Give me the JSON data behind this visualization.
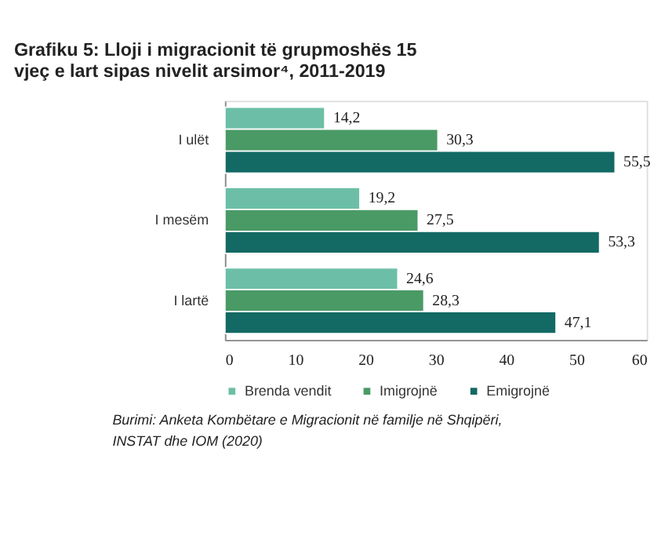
{
  "chart_data": {
    "type": "bar",
    "orientation": "horizontal",
    "title": "Grafiku 5: Lloji i migracionit të grupmoshës 15 vjeç e lart sipas nivelit arsimor⁴, 2011-2019",
    "categories": [
      "I ulët",
      "I mesëm",
      "I lartë"
    ],
    "series": [
      {
        "name": "Brenda vendit",
        "color": "#6cbfa6",
        "values": [
          14.2,
          19.2,
          24.6
        ],
        "value_labels": [
          "14,2",
          "19,2",
          "24,6"
        ]
      },
      {
        "name": "Imigrojnë",
        "color": "#4a9a66",
        "values": [
          30.3,
          27.5,
          28.3
        ],
        "value_labels": [
          "30,3",
          "27,5",
          "28,3"
        ]
      },
      {
        "name": "Emigrojnë",
        "color": "#136964",
        "values": [
          55.5,
          53.3,
          47.1
        ],
        "value_labels": [
          "55,5",
          "53,3",
          "47,1"
        ]
      }
    ],
    "xlim": [
      0,
      60
    ],
    "xticks": [
      0,
      10,
      20,
      30,
      40,
      50,
      60
    ],
    "grid": false,
    "legend": "bottom",
    "annotations": [
      "Burimi: Anketa Kombëtare e Migracionit në familje në Shqipëri, INSTAT dhe IOM (2020)"
    ]
  }
}
